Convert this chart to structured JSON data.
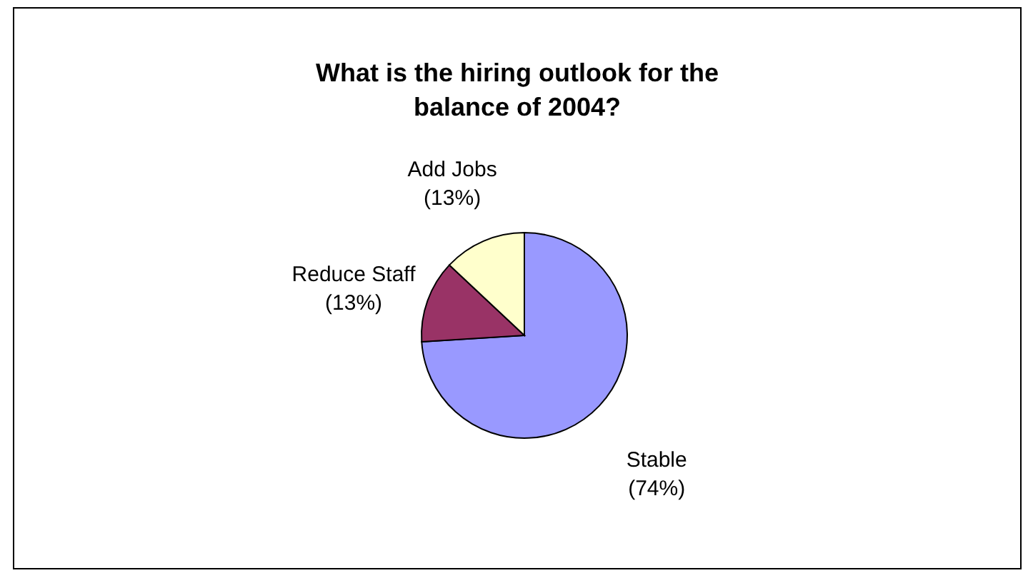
{
  "chart_data": {
    "type": "pie",
    "title": "What is the hiring outlook for the balance of 2004?",
    "categories": [
      "Stable",
      "Reduce Staff",
      "Add Jobs"
    ],
    "values": [
      74,
      13,
      13
    ],
    "colors": [
      "#9999ff",
      "#993366",
      "#ffffcc"
    ],
    "value_labels": [
      "(74%)",
      "(13%)",
      "(13%)"
    ]
  }
}
